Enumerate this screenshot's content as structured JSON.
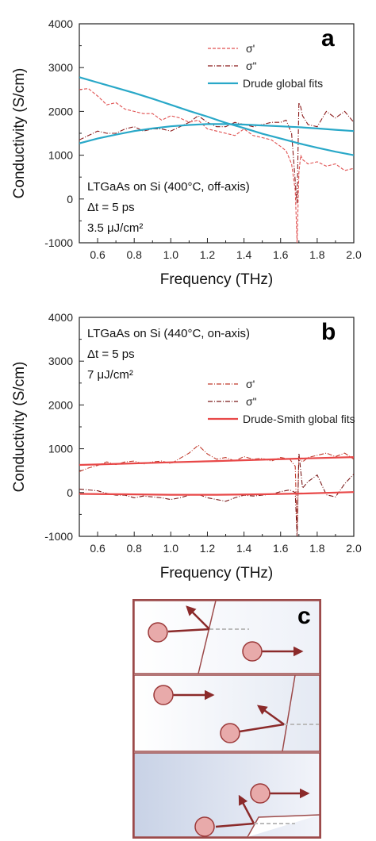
{
  "panels": [
    {
      "letter": "a",
      "annotations": [
        "LTGaAs on Si (400°C, off-axis)",
        "Δt = 5 ps",
        "3.5 μJ/cm²"
      ]
    },
    {
      "letter": "b",
      "annotations": [
        "LTGaAs on Si (440°C, on-axis)",
        "Δt = 5 ps",
        "7 μJ/cm²"
      ]
    },
    {
      "letter": "c"
    }
  ],
  "colors": {
    "panel_a_data": "#e05050",
    "panel_a_data2": "#8b1a1a",
    "panel_a_fit": "#29a8c8",
    "panel_b_data": "#c0392b",
    "panel_b_data2": "#7a1a1a",
    "panel_b_fit": "#e84848",
    "schematic_border": "#9c4a4a",
    "particle_fill": "#e8aaaa",
    "particle_edge": "#9c3a3a",
    "arrow": "#8b2a2a"
  },
  "chart_data": [
    {
      "type": "line",
      "xlabel": "Frequency (THz)",
      "ylabel": "Conductivity (S/cm)",
      "xlim": [
        0.5,
        2.0
      ],
      "ylim": [
        -1000,
        4000
      ],
      "xticks": [
        "0.6",
        "0.8",
        "1.0",
        "1.2",
        "1.4",
        "1.6",
        "1.8",
        "2.0"
      ],
      "yticks": [
        "-1000",
        "0",
        "1000",
        "2000",
        "3000",
        "4000"
      ],
      "legend_position": "top-right",
      "series": [
        {
          "name": "σ'",
          "style": "dashed",
          "x": [
            0.5,
            0.55,
            0.6,
            0.65,
            0.7,
            0.75,
            0.8,
            0.85,
            0.9,
            0.95,
            1.0,
            1.05,
            1.1,
            1.15,
            1.2,
            1.25,
            1.3,
            1.35,
            1.4,
            1.45,
            1.5,
            1.55,
            1.6,
            1.63,
            1.66,
            1.68,
            1.69,
            1.7,
            1.71,
            1.72,
            1.75,
            1.8,
            1.85,
            1.9,
            1.95,
            2.0
          ],
          "values": [
            2500,
            2520,
            2350,
            2150,
            2200,
            2050,
            2000,
            1950,
            1950,
            1800,
            1900,
            1850,
            1750,
            1800,
            1600,
            1550,
            1500,
            1450,
            1600,
            1450,
            1400,
            1350,
            1200,
            1100,
            800,
            200,
            -1000,
            600,
            1000,
            900,
            800,
            850,
            750,
            800,
            650,
            700
          ]
        },
        {
          "name": "σ\"",
          "style": "dash-dot",
          "x": [
            0.5,
            0.55,
            0.6,
            0.65,
            0.7,
            0.75,
            0.8,
            0.85,
            0.9,
            0.95,
            1.0,
            1.05,
            1.1,
            1.15,
            1.2,
            1.25,
            1.3,
            1.35,
            1.4,
            1.45,
            1.5,
            1.55,
            1.6,
            1.63,
            1.66,
            1.68,
            1.69,
            1.7,
            1.71,
            1.72,
            1.75,
            1.8,
            1.85,
            1.9,
            1.95,
            2.0
          ],
          "values": [
            1350,
            1450,
            1550,
            1500,
            1500,
            1600,
            1650,
            1550,
            1600,
            1600,
            1550,
            1650,
            1750,
            1900,
            1750,
            1650,
            1650,
            1750,
            1700,
            1650,
            1700,
            1750,
            1750,
            1800,
            1500,
            400,
            -100,
            2200,
            2100,
            1900,
            1700,
            1650,
            2000,
            1850,
            2000,
            1750
          ]
        },
        {
          "name": "Drude global fits",
          "style": "solid",
          "x": [
            0.5,
            0.6,
            0.7,
            0.8,
            0.9,
            1.0,
            1.1,
            1.2,
            1.3,
            1.4,
            1.5,
            1.6,
            1.7,
            1.8,
            1.9,
            2.0
          ],
          "values": [
            2780,
            2660,
            2540,
            2420,
            2290,
            2150,
            2010,
            1880,
            1740,
            1620,
            1490,
            1380,
            1270,
            1170,
            1080,
            1000
          ]
        },
        {
          "name": "",
          "style": "solid",
          "x": [
            0.5,
            0.6,
            0.7,
            0.8,
            0.9,
            1.0,
            1.1,
            1.2,
            1.3,
            1.4,
            1.5,
            1.6,
            1.7,
            1.8,
            1.9,
            2.0
          ],
          "values": [
            1270,
            1380,
            1470,
            1550,
            1610,
            1660,
            1690,
            1710,
            1710,
            1700,
            1680,
            1660,
            1640,
            1610,
            1580,
            1550
          ]
        }
      ]
    },
    {
      "type": "line",
      "xlabel": "Frequency (THz)",
      "ylabel": "Conductivity (S/cm)",
      "xlim": [
        0.5,
        2.0
      ],
      "ylim": [
        -1000,
        4000
      ],
      "xticks": [
        "0.6",
        "0.8",
        "1.0",
        "1.2",
        "1.4",
        "1.6",
        "1.8",
        "2.0"
      ],
      "yticks": [
        "-1000",
        "0",
        "1000",
        "2000",
        "3000",
        "4000"
      ],
      "legend_position": "center-right",
      "series": [
        {
          "name": "σ'",
          "style": "dash-dot",
          "x": [
            0.5,
            0.55,
            0.6,
            0.65,
            0.7,
            0.75,
            0.8,
            0.85,
            0.9,
            0.95,
            1.0,
            1.05,
            1.1,
            1.15,
            1.2,
            1.25,
            1.3,
            1.35,
            1.4,
            1.45,
            1.5,
            1.55,
            1.6,
            1.65,
            1.68,
            1.69,
            1.7,
            1.71,
            1.72,
            1.75,
            1.8,
            1.85,
            1.9,
            1.95,
            2.0
          ],
          "values": [
            480,
            560,
            620,
            700,
            640,
            700,
            720,
            650,
            700,
            720,
            660,
            780,
            900,
            1080,
            880,
            760,
            800,
            720,
            820,
            760,
            780,
            720,
            800,
            760,
            600,
            -900,
            800,
            750,
            700,
            800,
            850,
            900,
            820,
            900,
            760
          ]
        },
        {
          "name": "σ\"",
          "style": "dash-dot",
          "x": [
            0.5,
            0.55,
            0.6,
            0.65,
            0.7,
            0.75,
            0.8,
            0.85,
            0.9,
            0.95,
            1.0,
            1.05,
            1.1,
            1.15,
            1.2,
            1.25,
            1.3,
            1.35,
            1.4,
            1.45,
            1.5,
            1.55,
            1.6,
            1.65,
            1.68,
            1.69,
            1.7,
            1.71,
            1.72,
            1.75,
            1.8,
            1.85,
            1.9,
            1.95,
            2.0
          ],
          "values": [
            80,
            60,
            40,
            -20,
            -60,
            -60,
            -120,
            -80,
            -100,
            -120,
            -160,
            -120,
            -60,
            -40,
            -120,
            -160,
            -200,
            -120,
            -60,
            -80,
            -60,
            -40,
            20,
            60,
            0,
            -1000,
            900,
            500,
            100,
            250,
            400,
            -50,
            -100,
            200,
            420
          ]
        },
        {
          "name": "Drude-Smith global fits",
          "style": "solid",
          "x": [
            0.5,
            0.75,
            1.0,
            1.25,
            1.5,
            1.75,
            2.0
          ],
          "values": [
            630,
            660,
            690,
            720,
            750,
            780,
            810
          ]
        },
        {
          "name": "",
          "style": "solid",
          "x": [
            0.5,
            0.75,
            1.0,
            1.25,
            1.5,
            1.75,
            2.0
          ],
          "values": [
            -30,
            -40,
            -50,
            -50,
            -40,
            -20,
            10
          ]
        }
      ]
    }
  ]
}
